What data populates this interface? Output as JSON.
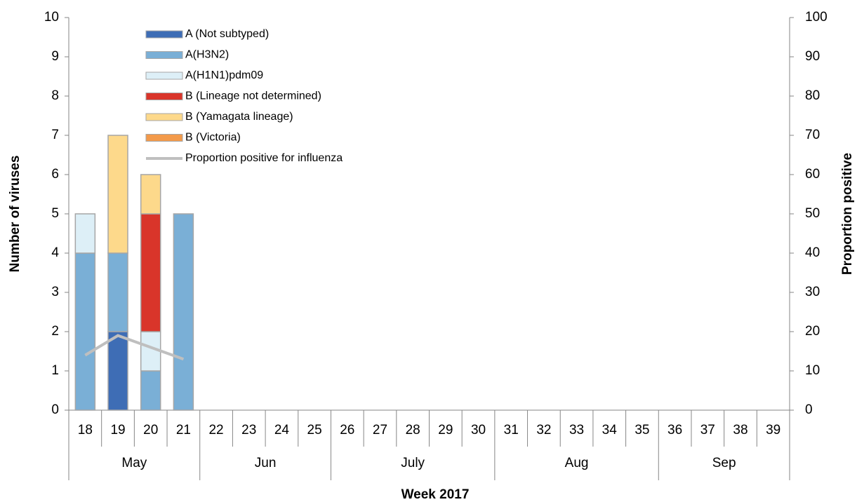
{
  "chart_data": {
    "type": "bar",
    "x_label": "Week 2017",
    "y_label": "Number of viruses",
    "y2_label": "Proportion positive",
    "categories": [
      "18",
      "19",
      "20",
      "21",
      "22",
      "23",
      "24",
      "25",
      "26",
      "27",
      "28",
      "29",
      "30",
      "31",
      "32",
      "33",
      "34",
      "35",
      "36",
      "37",
      "38",
      "39"
    ],
    "months": [
      "May",
      "May",
      "May",
      "May",
      "Jun",
      "Jun",
      "Jun",
      "Jun",
      "July",
      "July",
      "July",
      "July",
      "July",
      "Aug",
      "Aug",
      "Aug",
      "Aug",
      "Aug",
      "Sep",
      "Sep",
      "Sep",
      "Sep"
    ],
    "ylim": [
      0,
      10
    ],
    "yticks": [
      0,
      1,
      2,
      3,
      4,
      5,
      6,
      7,
      8,
      9,
      10
    ],
    "y2lim": [
      0,
      100
    ],
    "y2ticks": [
      0,
      10,
      20,
      30,
      40,
      50,
      60,
      70,
      80,
      90,
      100
    ],
    "stacked": true,
    "series": [
      {
        "name": "A (Not subtyped)",
        "color": "#3e6db5",
        "values": [
          0,
          2,
          0,
          0,
          0,
          0,
          0,
          0,
          0,
          0,
          0,
          0,
          0,
          0,
          0,
          0,
          0,
          0,
          0,
          0,
          0,
          0
        ]
      },
      {
        "name": "A(H3N2)",
        "color": "#7aafd6",
        "values": [
          4,
          2,
          1,
          5,
          0,
          0,
          0,
          0,
          0,
          0,
          0,
          0,
          0,
          0,
          0,
          0,
          0,
          0,
          0,
          0,
          0,
          0
        ]
      },
      {
        "name": "A(H1N1)pdm09",
        "color": "#ddeff7",
        "values": [
          1,
          0,
          1,
          0,
          0,
          0,
          0,
          0,
          0,
          0,
          0,
          0,
          0,
          0,
          0,
          0,
          0,
          0,
          0,
          0,
          0,
          0
        ]
      },
      {
        "name": "B (Lineage not determined)",
        "color": "#d9352a",
        "values": [
          0,
          0,
          3,
          0,
          0,
          0,
          0,
          0,
          0,
          0,
          0,
          0,
          0,
          0,
          0,
          0,
          0,
          0,
          0,
          0,
          0,
          0
        ]
      },
      {
        "name": "B (Yamagata lineage)",
        "color": "#fdd98b",
        "values": [
          0,
          3,
          1,
          0,
          0,
          0,
          0,
          0,
          0,
          0,
          0,
          0,
          0,
          0,
          0,
          0,
          0,
          0,
          0,
          0,
          0,
          0
        ]
      },
      {
        "name": "B (Victoria)",
        "color": "#f39a4a",
        "values": [
          0,
          0,
          0,
          0,
          0,
          0,
          0,
          0,
          0,
          0,
          0,
          0,
          0,
          0,
          0,
          0,
          0,
          0,
          0,
          0,
          0,
          0
        ]
      },
      {
        "name": "Proportion positive for influenza",
        "type": "line",
        "axis": "y2",
        "color": "#bfbfbf",
        "values": [
          14,
          19,
          16,
          13,
          null,
          null,
          null,
          null,
          null,
          null,
          null,
          null,
          null,
          null,
          null,
          null,
          null,
          null,
          null,
          null,
          null,
          null
        ]
      }
    ]
  }
}
